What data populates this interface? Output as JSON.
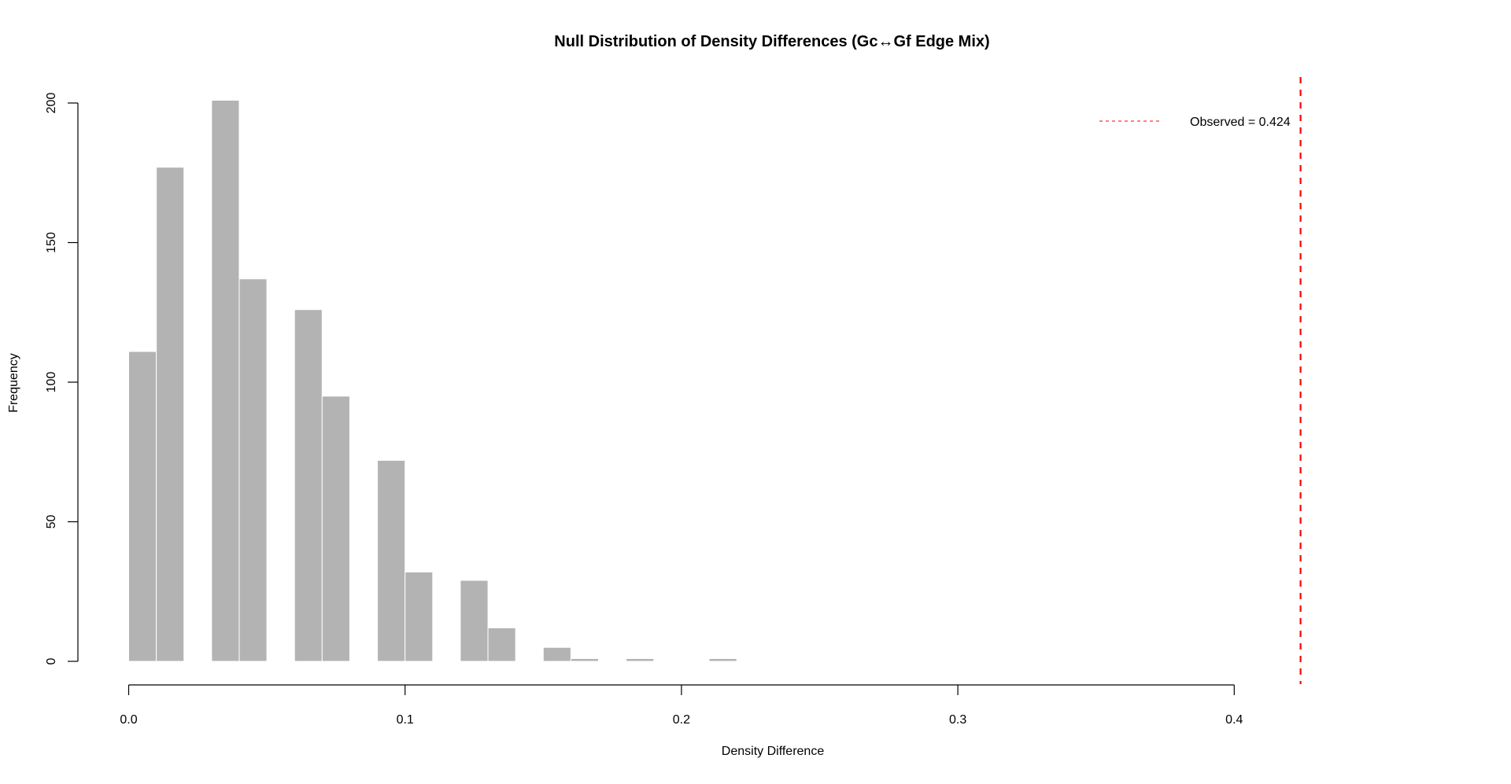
{
  "chart_data": {
    "type": "bar",
    "subtype": "histogram",
    "title": "Null Distribution of Density Differences (Gc↔Gf Edge Mix)",
    "xlabel": "Density Difference",
    "ylabel": "Frequency",
    "bin_width": 0.01,
    "bins": [
      {
        "x0": 0.0,
        "x1": 0.01,
        "count": 111
      },
      {
        "x0": 0.01,
        "x1": 0.02,
        "count": 177
      },
      {
        "x0": 0.02,
        "x1": 0.03,
        "count": 0
      },
      {
        "x0": 0.03,
        "x1": 0.04,
        "count": 201
      },
      {
        "x0": 0.04,
        "x1": 0.05,
        "count": 137
      },
      {
        "x0": 0.05,
        "x1": 0.06,
        "count": 0
      },
      {
        "x0": 0.06,
        "x1": 0.07,
        "count": 126
      },
      {
        "x0": 0.07,
        "x1": 0.08,
        "count": 95
      },
      {
        "x0": 0.08,
        "x1": 0.09,
        "count": 0
      },
      {
        "x0": 0.09,
        "x1": 0.1,
        "count": 72
      },
      {
        "x0": 0.1,
        "x1": 0.11,
        "count": 32
      },
      {
        "x0": 0.11,
        "x1": 0.12,
        "count": 0
      },
      {
        "x0": 0.12,
        "x1": 0.13,
        "count": 29
      },
      {
        "x0": 0.13,
        "x1": 0.14,
        "count": 12
      },
      {
        "x0": 0.14,
        "x1": 0.15,
        "count": 0
      },
      {
        "x0": 0.15,
        "x1": 0.16,
        "count": 5
      },
      {
        "x0": 0.16,
        "x1": 0.17,
        "count": 1
      },
      {
        "x0": 0.17,
        "x1": 0.18,
        "count": 0
      },
      {
        "x0": 0.18,
        "x1": 0.19,
        "count": 1
      },
      {
        "x0": 0.19,
        "x1": 0.2,
        "count": 0
      },
      {
        "x0": 0.2,
        "x1": 0.21,
        "count": 0
      },
      {
        "x0": 0.21,
        "x1": 0.22,
        "count": 1
      }
    ],
    "categories": [
      "0.00-0.01",
      "0.01-0.02",
      "0.02-0.03",
      "0.03-0.04",
      "0.04-0.05",
      "0.05-0.06",
      "0.06-0.07",
      "0.07-0.08",
      "0.08-0.09",
      "0.09-0.10",
      "0.10-0.11",
      "0.11-0.12",
      "0.12-0.13",
      "0.13-0.14",
      "0.14-0.15",
      "0.15-0.16",
      "0.16-0.17",
      "0.17-0.18",
      "0.18-0.19",
      "0.19-0.20",
      "0.20-0.21",
      "0.21-0.22"
    ],
    "values": [
      111,
      177,
      0,
      201,
      137,
      0,
      126,
      95,
      0,
      72,
      32,
      0,
      29,
      12,
      0,
      5,
      1,
      0,
      1,
      0,
      0,
      1
    ],
    "xticks": [
      0.0,
      0.1,
      0.2,
      0.3,
      0.4
    ],
    "xtick_labels": [
      "0.0",
      "0.1",
      "0.2",
      "0.3",
      "0.4"
    ],
    "yticks": [
      0,
      50,
      100,
      150,
      200
    ],
    "ytick_labels": [
      "0",
      "50",
      "100",
      "150",
      "200"
    ],
    "xlim": [
      0.0,
      0.4
    ],
    "ylim": [
      0,
      200
    ],
    "grid": false,
    "bar_color": "#b3b3b3",
    "bar_border_color": "#ffffff",
    "annotations": [
      {
        "type": "vline",
        "x": 0.424,
        "color": "#ff0000",
        "linestyle": "dashed",
        "label": "Observed = 0.424"
      }
    ],
    "legend": {
      "position": "topright",
      "entries": [
        {
          "label": "Observed = 0.424",
          "color": "#ff0000",
          "linestyle": "dashed"
        }
      ]
    }
  }
}
